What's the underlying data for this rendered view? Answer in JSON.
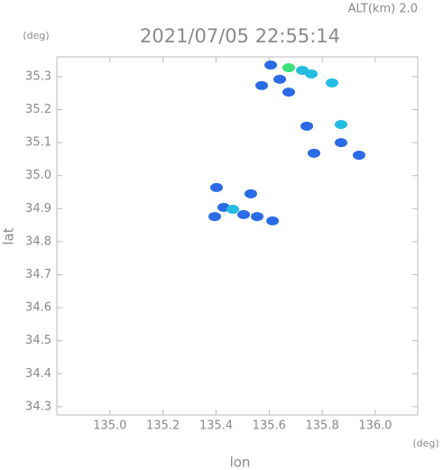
{
  "chart_data": {
    "type": "scatter",
    "header": "ALT(km) 2.0",
    "title": "2021/07/05 22:55:14",
    "y_unit": "(deg)",
    "x_unit": "(deg)",
    "xlabel": "lon",
    "ylabel": "lat",
    "xlim": [
      134.8,
      136.16
    ],
    "ylim": [
      34.275,
      35.36
    ],
    "xticks": [
      {
        "value": 135,
        "label": "135.0"
      },
      135.2,
      135.4,
      135.6,
      135.8,
      {
        "value": 136,
        "label": "136.0"
      }
    ],
    "yticks": [
      34.3,
      34.4,
      34.5,
      34.6,
      34.7,
      34.8,
      34.9,
      {
        "value": 35,
        "label": "35.0"
      },
      35.1,
      35.2,
      35.3
    ],
    "series": [
      {
        "color": "#2b6be8",
        "x": [
          135.606,
          135.64,
          135.572,
          135.674,
          135.742,
          135.871,
          135.769,
          135.939,
          135.429,
          135.504,
          135.555,
          135.613,
          135.395,
          135.531,
          135.402
        ],
        "y": [
          35.335,
          35.292,
          35.273,
          35.253,
          35.15,
          35.1,
          35.068,
          35.062,
          34.904,
          34.882,
          34.876,
          34.863,
          34.876,
          34.945,
          34.964
        ]
      },
      {
        "color": "#22bde0",
        "x": [
          135.725,
          135.759,
          135.837,
          135.871,
          135.463
        ],
        "y": [
          35.319,
          35.308,
          35.281,
          35.155,
          34.898
        ]
      },
      {
        "color": "#3ee07a",
        "x": [
          135.674
        ],
        "y": [
          35.327
        ]
      }
    ]
  }
}
